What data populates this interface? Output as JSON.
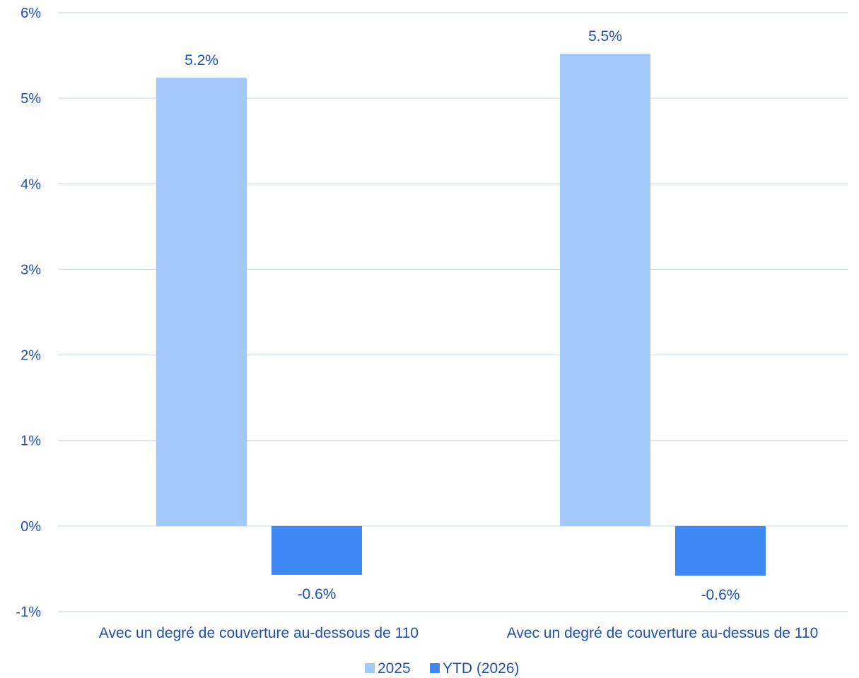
{
  "chart_data": {
    "type": "bar",
    "categories": [
      "Avec un degré de couverture au-dessous de 110",
      "Avec un degré de couverture au-dessus de 110"
    ],
    "series": [
      {
        "name": "2025",
        "color": "#a3c9fb",
        "values": [
          5.24,
          5.52
        ],
        "labels": [
          "5.2%",
          "5.5%"
        ]
      },
      {
        "name": "YTD (2026)",
        "color": "#3e88f4",
        "values": [
          -0.57,
          -0.58
        ],
        "labels": [
          "-0.6%",
          "-0.6%"
        ]
      }
    ],
    "ylim": [
      -1,
      6
    ],
    "yticks": [
      -1,
      0,
      1,
      2,
      3,
      4,
      5,
      6
    ],
    "ytick_labels": [
      "-1%",
      "0%",
      "1%",
      "2%",
      "3%",
      "4%",
      "5%",
      "6%"
    ],
    "grid": true,
    "legend_position": "bottom-center",
    "title": "",
    "xlabel": "",
    "ylabel": ""
  },
  "colors": {
    "text": "#1f4fb8",
    "gridline": "#d3e1f5"
  }
}
